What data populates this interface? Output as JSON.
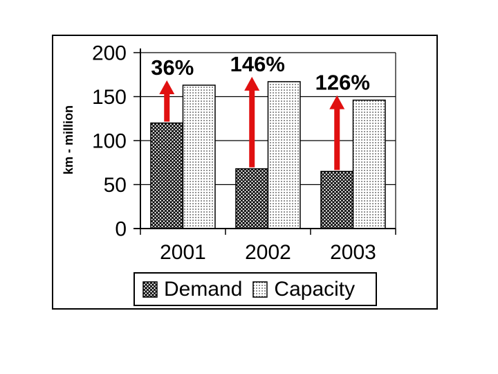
{
  "chart_data": {
    "type": "bar",
    "categories": [
      "2001",
      "2002",
      "2003"
    ],
    "series": [
      {
        "name": "Demand",
        "values": [
          120,
          68,
          65
        ]
      },
      {
        "name": "Capacity",
        "values": [
          163,
          167,
          146
        ]
      }
    ],
    "annotations": [
      {
        "category": "2001",
        "label": "36%"
      },
      {
        "category": "2002",
        "label": "146%"
      },
      {
        "category": "2003",
        "label": "126%"
      }
    ],
    "title": "",
    "xlabel": "",
    "ylabel": "km - million",
    "yticks": [
      0,
      50,
      100,
      150,
      200
    ],
    "ylim": [
      0,
      200
    ],
    "grid": true,
    "legend_position": "bottom"
  },
  "colors": {
    "arrow_red": "#e01010",
    "axis": "#000000",
    "background": "#ffffff"
  }
}
